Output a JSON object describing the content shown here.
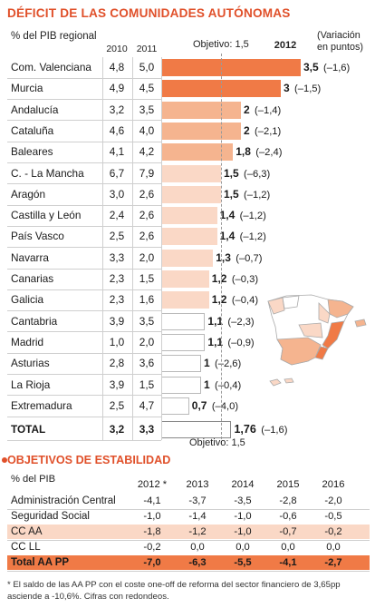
{
  "title": "DÉFICIT DE LAS COMUNIDADES AUTÓNOMAS",
  "subtitle": "% del PIB regional",
  "objective_top": "Objetivo: 1,5",
  "objective_bottom": "Objetivo: 1,5",
  "columns": {
    "y2010": "2010",
    "y2011": "2011",
    "y2012": "2012",
    "variation": [
      "(Variación",
      "en puntos)"
    ]
  },
  "colors": {
    "accent": "#e0502a",
    "bar_dark": "#f07a46",
    "bar_mid": "#f5b48f",
    "bar_light": "#fad8c6",
    "bar_white": "#ffffff"
  },
  "chart_data": {
    "type": "bar",
    "title": "DÉFICIT DE LAS COMUNIDADES AUTÓNOMAS",
    "ylabel": "% del PIB regional",
    "objective": 1.5,
    "series_names": [
      "2010",
      "2011",
      "2012"
    ],
    "rows": [
      {
        "name": "Com. Valenciana",
        "y2010": "4,8",
        "y2011": "5,0",
        "label": "3,5",
        "value": 3.5,
        "change": "(–1,6)",
        "tone": "dark"
      },
      {
        "name": "Murcia",
        "y2010": "4,9",
        "y2011": "4,5",
        "label": "3",
        "value": 3.0,
        "change": "(–1,5)",
        "tone": "dark"
      },
      {
        "name": "Andalucía",
        "y2010": "3,2",
        "y2011": "3,5",
        "label": "2",
        "value": 2.0,
        "change": "(–1,4)",
        "tone": "mid"
      },
      {
        "name": "Cataluña",
        "y2010": "4,6",
        "y2011": "4,0",
        "label": "2",
        "value": 2.0,
        "change": "(–2,1)",
        "tone": "mid"
      },
      {
        "name": "Baleares",
        "y2010": "4,1",
        "y2011": "4,2",
        "label": "1,8",
        "value": 1.8,
        "change": "(–2,4)",
        "tone": "mid"
      },
      {
        "name": "C. - La Mancha",
        "y2010": "6,7",
        "y2011": "7,9",
        "label": "1,5",
        "value": 1.5,
        "change": "(–6,3)",
        "tone": "light"
      },
      {
        "name": "Aragón",
        "y2010": "3,0",
        "y2011": "2,6",
        "label": "1,5",
        "value": 1.5,
        "change": "(–1,2)",
        "tone": "light"
      },
      {
        "name": "Castilla y León",
        "y2010": "2,4",
        "y2011": "2,6",
        "label": "1,4",
        "value": 1.4,
        "change": "(–1,2)",
        "tone": "light"
      },
      {
        "name": "País Vasco",
        "y2010": "2,5",
        "y2011": "2,6",
        "label": "1,4",
        "value": 1.4,
        "change": "(–1,2)",
        "tone": "light"
      },
      {
        "name": " Navarra",
        "y2010": "3,3",
        "y2011": "2,0",
        "label": "1,3",
        "value": 1.3,
        "change": "(–0,7)",
        "tone": "light"
      },
      {
        "name": "Canarias",
        "y2010": "2,3",
        "y2011": "1,5",
        "label": "1,2",
        "value": 1.2,
        "change": "(–0,3)",
        "tone": "light"
      },
      {
        "name": "Galicia",
        "y2010": "2,3",
        "y2011": "1,6",
        "label": "1,2",
        "value": 1.2,
        "change": "(–0,4)",
        "tone": "light"
      },
      {
        "name": "Cantabria",
        "y2010": "3,9",
        "y2011": "3,5",
        "label": "1,1",
        "value": 1.1,
        "change": "(–2,3)",
        "tone": "white"
      },
      {
        "name": "Madrid",
        "y2010": "1,0",
        "y2011": "2,0",
        "label": "1,1",
        "value": 1.1,
        "change": "(–0,9)",
        "tone": "white"
      },
      {
        "name": "Asturias",
        "y2010": "2,8",
        "y2011": "3,6",
        "label": "1",
        "value": 1.0,
        "change": "(–2,6)",
        "tone": "white"
      },
      {
        "name": "La Rioja",
        "y2010": "3,9",
        "y2011": "1,5",
        "label": "1",
        "value": 1.0,
        "change": "(–0,4)",
        "tone": "white"
      },
      {
        "name": "Extremadura",
        "y2010": "2,5",
        "y2011": "4,7",
        "label": "0,7",
        "value": 0.7,
        "change": "(–4,0)",
        "tone": "white"
      }
    ],
    "total": {
      "name": "TOTAL",
      "y2010": "3,2",
      "y2011": "3,3",
      "label": "1,76",
      "value": 1.76,
      "change": "(–1,6)",
      "tone": "white"
    }
  },
  "stability": {
    "title": "OBJETIVOS DE ESTABILIDAD",
    "subtitle": "% del PIB",
    "years": [
      "2012 *",
      "2013",
      "2014",
      "2015",
      "2016"
    ],
    "rows": [
      {
        "name": "Administración Central",
        "values": [
          "-4,1",
          "-3,7",
          "-3,5",
          "-2,8",
          "-2,0"
        ],
        "style": "plain"
      },
      {
        "name": "Seguridad Social",
        "values": [
          "-1,0",
          "-1,4",
          "-1,0",
          "-0,6",
          "-0,5"
        ],
        "style": "plain"
      },
      {
        "name": "CC AA",
        "values": [
          "-1,8",
          "-1,2",
          "-1,0",
          "-0,7",
          "-0,2"
        ],
        "style": "highlight"
      },
      {
        "name": "CC LL",
        "values": [
          "-0,2",
          "0,0",
          "0,0",
          "0,0",
          "0,0"
        ],
        "style": "plain"
      },
      {
        "name": "Total AA PP",
        "values": [
          "-7,0",
          "-6,3",
          "-5,5",
          "-4,1",
          "-2,7"
        ],
        "style": "total"
      }
    ],
    "footnote": "* El saldo de las AA PP con el coste one-off de reforma del sector financiero de 3,65pp asciende a -10,6%. Cifras con  redondeos."
  }
}
